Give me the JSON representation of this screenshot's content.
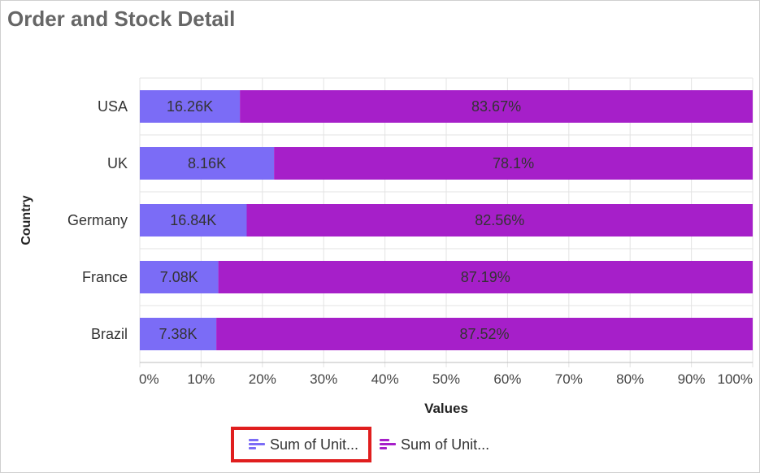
{
  "chart_data": {
    "type": "bar",
    "orientation": "horizontal",
    "stacked": "percent",
    "title": "Order and Stock Detail",
    "xlabel": "Values",
    "ylabel": "Country",
    "xlim": [
      0,
      100
    ],
    "x_ticks": [
      "0%",
      "10%",
      "20%",
      "30%",
      "40%",
      "50%",
      "60%",
      "70%",
      "80%",
      "90%",
      "100%"
    ],
    "categories": [
      "USA",
      "UK",
      "Germany",
      "France",
      "Brazil"
    ],
    "series": [
      {
        "name": "Sum of Unit...",
        "color": "#7b6cf6",
        "percent": [
          16.33,
          21.9,
          17.44,
          12.81,
          12.48
        ],
        "labels": [
          "16.26K",
          "8.16K",
          "16.84K",
          "7.08K",
          "7.38K"
        ]
      },
      {
        "name": "Sum of Unit...",
        "color": "#a61fc9",
        "percent": [
          83.67,
          78.1,
          82.56,
          87.19,
          87.52
        ],
        "labels": [
          "83.67%",
          "78.1%",
          "82.56%",
          "87.19%",
          "87.52%"
        ]
      }
    ],
    "grid": true,
    "legend": "bottom"
  }
}
